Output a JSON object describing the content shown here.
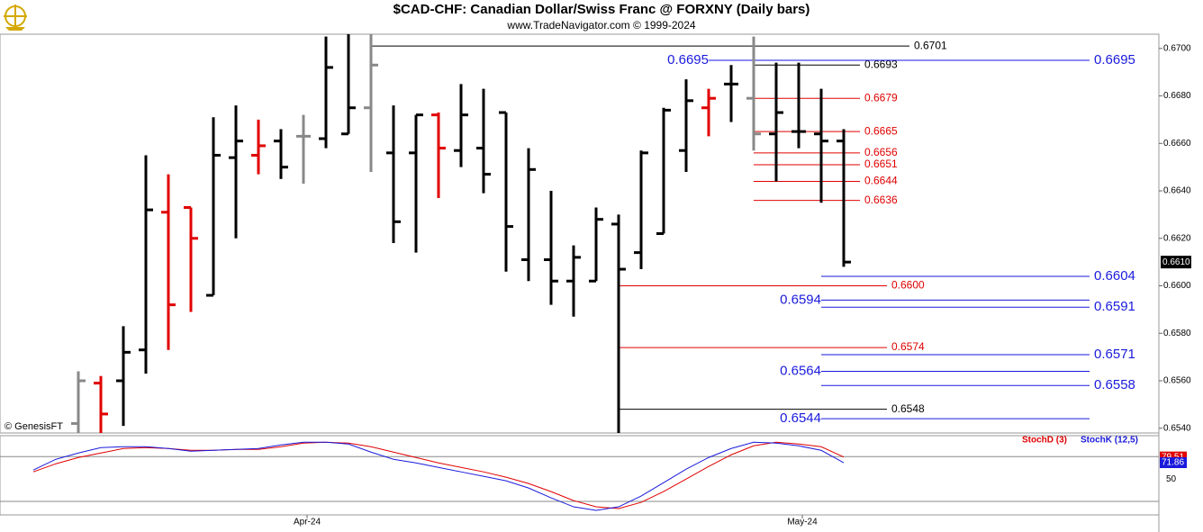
{
  "chart_data": {
    "type": "ohlc",
    "title": "$CAD-CHF:  Canadian Dollar/Swiss Franc @ FORXNY  (Daily bars)",
    "subtitle": "www.TradeNavigator.com © 1999-2024",
    "watermark": "© GenesisFT",
    "categories": [
      null,
      null,
      null,
      null,
      null,
      null,
      null,
      null,
      null,
      null,
      null,
      null,
      "Apr-24",
      null,
      null,
      null,
      null,
      null,
      null,
      null,
      null,
      null,
      null,
      null,
      null,
      null,
      null,
      null,
      null,
      null,
      null,
      null,
      null,
      null,
      "May-24",
      null,
      null
    ],
    "open": [
      null,
      null,
      0.6542,
      0.6559,
      0.656,
      0.6573,
      0.6631,
      0.6633,
      0.6596,
      0.6654,
      0.6655,
      0.6661,
      0.6663,
      0.6662,
      0.6664,
      0.6675,
      0.6656,
      0.6656,
      0.6672,
      0.6657,
      0.6658,
      0.6673,
      0.6611,
      0.6611,
      0.6602,
      0.6602,
      0.6626,
      0.6614,
      0.6622,
      0.6657,
      0.6675,
      0.6685,
      0.6679,
      0.6664,
      0.6665,
      0.6664,
      0.6661
    ],
    "high": [
      null,
      null,
      0.6564,
      0.6562,
      0.6583,
      0.6655,
      0.6647,
      0.6633,
      0.6671,
      0.6676,
      0.667,
      0.6666,
      0.6672,
      0.6705,
      0.6706,
      0.6706,
      0.6676,
      0.6672,
      0.6673,
      0.6685,
      0.6683,
      0.6673,
      0.6658,
      0.664,
      0.6617,
      0.6633,
      0.663,
      0.6657,
      0.6675,
      0.6687,
      0.6683,
      0.6693,
      0.6705,
      0.6694,
      0.6694,
      0.6683,
      0.6666
    ],
    "low": [
      null,
      null,
      0.6538,
      0.6538,
      0.6541,
      0.6563,
      0.6573,
      0.6589,
      0.6596,
      0.662,
      0.6647,
      0.6645,
      0.6643,
      0.6658,
      0.6664,
      0.6648,
      0.6618,
      0.6614,
      0.6637,
      0.665,
      0.6639,
      0.6606,
      0.6602,
      0.6592,
      0.6587,
      0.6602,
      0.6538,
      0.6607,
      0.6622,
      0.6648,
      0.6663,
      0.6669,
      0.6657,
      0.6644,
      0.6658,
      0.6635,
      0.6608
    ],
    "close": [
      null,
      null,
      0.656,
      0.6546,
      0.6572,
      0.6632,
      0.6592,
      0.662,
      0.6655,
      0.6661,
      0.6659,
      0.665,
      0.6663,
      0.6692,
      0.6675,
      0.6693,
      0.6627,
      0.6672,
      0.6658,
      0.6672,
      0.6647,
      0.6625,
      0.6649,
      0.6602,
      0.6612,
      0.6628,
      0.6607,
      0.6656,
      0.6674,
      0.6678,
      0.6679,
      0.6685,
      0.6664,
      0.6673,
      0.6665,
      0.6661,
      0.661
    ],
    "colors": [
      null,
      null,
      "#888888",
      "#e00000",
      "#000000",
      "#000000",
      "#e00000",
      "#e00000",
      "#000000",
      "#000000",
      "#e00000",
      "#000000",
      "#888888",
      "#000000",
      "#000000",
      "#888888",
      "#000000",
      "#000000",
      "#e00000",
      "#000000",
      "#000000",
      "#000000",
      "#000000",
      "#000000",
      "#000000",
      "#000000",
      "#000000",
      "#000000",
      "#000000",
      "#000000",
      "#e00000",
      "#000000",
      "#888888",
      "#000000",
      "#000000",
      "#000000",
      "#000000"
    ],
    "last_price": {
      "value": 0.661,
      "label": "0.6610"
    },
    "ylim": [
      0.6538,
      0.6706
    ],
    "yticks": [
      {
        "value": 0.654,
        "label": "0.6540"
      },
      {
        "value": 0.656,
        "label": "0.6560"
      },
      {
        "value": 0.658,
        "label": "0.6580"
      },
      {
        "value": 0.66,
        "label": "0.6600"
      },
      {
        "value": 0.662,
        "label": "0.6620"
      },
      {
        "value": 0.664,
        "label": "0.6640"
      },
      {
        "value": 0.666,
        "label": "0.6660"
      },
      {
        "value": 0.668,
        "label": "0.6680"
      },
      {
        "value": 0.67,
        "label": "0.6700"
      }
    ],
    "levels": [
      {
        "value": 0.6701,
        "label": "0.6701",
        "color": "#000000"
      },
      {
        "value": 0.6693,
        "label": "0.6693",
        "color": "#000000"
      },
      {
        "value": 0.6548,
        "label": "0.6548",
        "color": "#000000"
      },
      {
        "value": 0.6679,
        "label": "0.6679",
        "color": "#e00000"
      },
      {
        "value": 0.6665,
        "label": "0.6665",
        "color": "#e00000"
      },
      {
        "value": 0.6656,
        "label": "0.6656",
        "color": "#e00000"
      },
      {
        "value": 0.6651,
        "label": "0.6651",
        "color": "#e00000"
      },
      {
        "value": 0.6644,
        "label": "0.6644",
        "color": "#e00000"
      },
      {
        "value": 0.6636,
        "label": "0.6636",
        "color": "#e00000"
      },
      {
        "value": 0.66,
        "label": "0.6600",
        "color": "#e00000"
      },
      {
        "value": 0.6574,
        "label": "0.6574",
        "color": "#e00000"
      },
      {
        "value": 0.6695,
        "label": "0.6695",
        "color": "#1a1adc"
      },
      {
        "value": 0.6604,
        "label": "0.6604",
        "color": "#1a1adc"
      },
      {
        "value": 0.6594,
        "label": "0.6594",
        "color": "#1a1adc"
      },
      {
        "value": 0.6591,
        "label": "0.6591",
        "color": "#1a1adc"
      },
      {
        "value": 0.6571,
        "label": "0.6571",
        "color": "#1a1adc"
      },
      {
        "value": 0.6564,
        "label": "0.6564",
        "color": "#1a1adc"
      },
      {
        "value": 0.6558,
        "label": "0.6558",
        "color": "#1a1adc"
      },
      {
        "value": 0.6544,
        "label": "0.6544",
        "color": "#1a1adc"
      }
    ],
    "indicator": {
      "type": "line",
      "ylim": [
        2,
        108
      ],
      "yticks": [
        50
      ],
      "hlines": [
        20,
        80
      ],
      "series": [
        {
          "name": "StochD (3)",
          "color": "#e00000",
          "values": [
            59.6,
            70.4,
            78.8,
            84.8,
            90.8,
            92,
            90.8,
            88.4,
            88.4,
            89.6,
            89.6,
            93.2,
            98,
            99.2,
            98,
            93.2,
            86,
            78.8,
            71.6,
            65.6,
            59.6,
            52.4,
            44,
            33.2,
            21.2,
            12.8,
            10.4,
            18.8,
            33.2,
            50,
            66.8,
            82.4,
            94.4,
            99.2,
            96.8,
            93.2,
            79.51
          ]
        },
        {
          "name": "StochK (12,5)",
          "color": "#1a1adc",
          "values": [
            62,
            76.4,
            84.8,
            92,
            93.2,
            93.2,
            90.8,
            87.2,
            88.4,
            89.6,
            90.8,
            95.6,
            99.2,
            99.2,
            96.8,
            86,
            76.4,
            71.6,
            65.6,
            59.6,
            53.6,
            47.6,
            38,
            24.8,
            12.8,
            8,
            12.8,
            27.2,
            45.2,
            63.2,
            78.8,
            90.8,
            99.2,
            98,
            94.4,
            88.4,
            71.86
          ]
        }
      ]
    }
  }
}
